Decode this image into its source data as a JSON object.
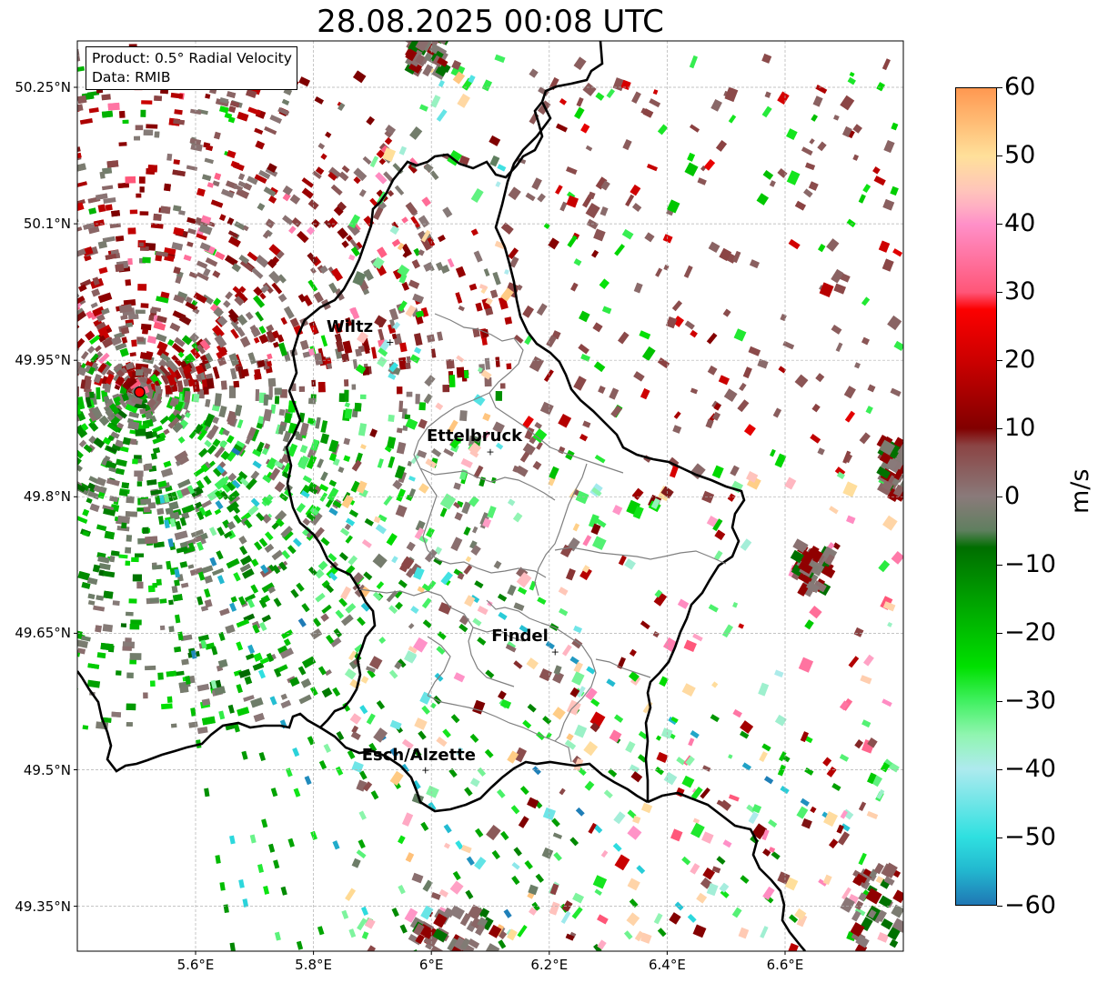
{
  "title": "28.08.2025 00:08 UTC",
  "info_box": {
    "product": "Product: 0.5° Radial Velocity",
    "data": "Data: RMIB"
  },
  "lat_ticks": [
    "50.25°N",
    "50.1°N",
    "49.95°N",
    "49.8°N",
    "49.65°N",
    "49.5°N",
    "49.35°N"
  ],
  "lon_ticks": [
    "5.6°E",
    "5.8°E",
    "6°E",
    "6.2°E",
    "6.4°E",
    "6.6°E"
  ],
  "cities": [
    {
      "name": "Wiltz",
      "lon": 5.93,
      "lat": 49.97
    },
    {
      "name": "Ettelbruck",
      "lon": 6.1,
      "lat": 49.85
    },
    {
      "name": "Findel",
      "lon": 6.21,
      "lat": 49.63
    },
    {
      "name": "Esch/Alzette",
      "lon": 5.99,
      "lat": 49.5
    }
  ],
  "radar_site": {
    "lon": 5.505,
    "lat": 49.915
  },
  "colorbar": {
    "unit": "m/s",
    "ticks": [
      "60",
      "50",
      "40",
      "30",
      "20",
      "10",
      "0",
      "−10",
      "−20",
      "−30",
      "−40",
      "−50",
      "−60"
    ],
    "min": -60,
    "max": 60,
    "stops": [
      {
        "v": -60,
        "color": "#1f77b4"
      },
      {
        "v": -55,
        "color": "#22b7cf"
      },
      {
        "v": -50,
        "color": "#2fe0e0"
      },
      {
        "v": -40,
        "color": "#aeeaee"
      },
      {
        "v": -35,
        "color": "#90f5b0"
      },
      {
        "v": -30,
        "color": "#40f060"
      },
      {
        "v": -25,
        "color": "#00e000"
      },
      {
        "v": -15,
        "color": "#00a000"
      },
      {
        "v": -6,
        "color": "#006400"
      },
      {
        "v": -5,
        "color": "#5f7f5f"
      },
      {
        "v": 0,
        "color": "#8a7a7a"
      },
      {
        "v": 8,
        "color": "#8b4040"
      },
      {
        "v": 9,
        "color": "#7a0000"
      },
      {
        "v": 20,
        "color": "#cc0000"
      },
      {
        "v": 28,
        "color": "#ff0000"
      },
      {
        "v": 29,
        "color": "#ff5070"
      },
      {
        "v": 40,
        "color": "#ff90c8"
      },
      {
        "v": 44,
        "color": "#ffc0c0"
      },
      {
        "v": 50,
        "color": "#ffe09a"
      },
      {
        "v": 60,
        "color": "#ff9850"
      }
    ]
  },
  "map_extent": {
    "lon_min": 5.4,
    "lon_max": 6.8,
    "lat_min": 49.29,
    "lat_max": 50.31
  },
  "colors": {
    "border": "#000000",
    "cantons": "#808080",
    "grid": "#b0b0b0",
    "radar_site": "#ff0000"
  }
}
